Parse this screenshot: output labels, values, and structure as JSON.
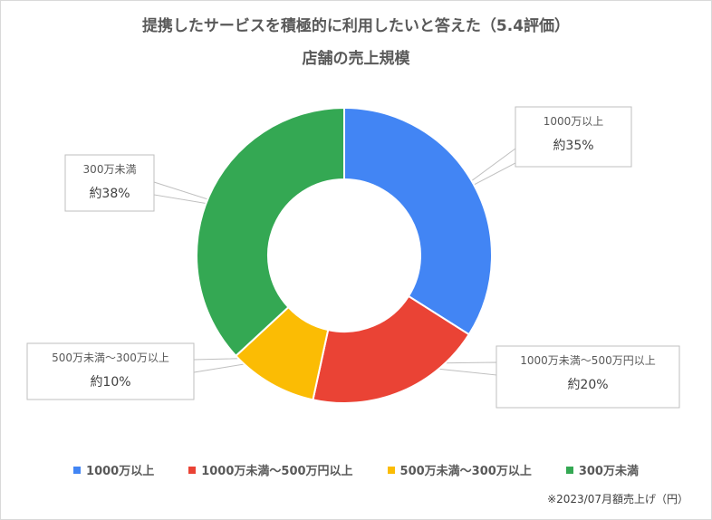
{
  "title_line1": "提携したサービスを積極的に利用したいと答えた（5.4評価）",
  "title_line2": "店舗の売上規模",
  "chart_data": {
    "type": "pie",
    "variant": "donut",
    "categories": [
      "1000万以上",
      "1000万未満〜500万円以上",
      "500万未満〜300万以上",
      "300万未満"
    ],
    "values": [
      35,
      20,
      10,
      38
    ],
    "labels": [
      "約35%",
      "約20%",
      "約10%",
      "約38%"
    ],
    "colors": [
      "#4285f4",
      "#ea4335",
      "#fbbc04",
      "#34a853"
    ],
    "legend_position": "bottom"
  },
  "footnote": "※2023/07月額売上げ（円）"
}
